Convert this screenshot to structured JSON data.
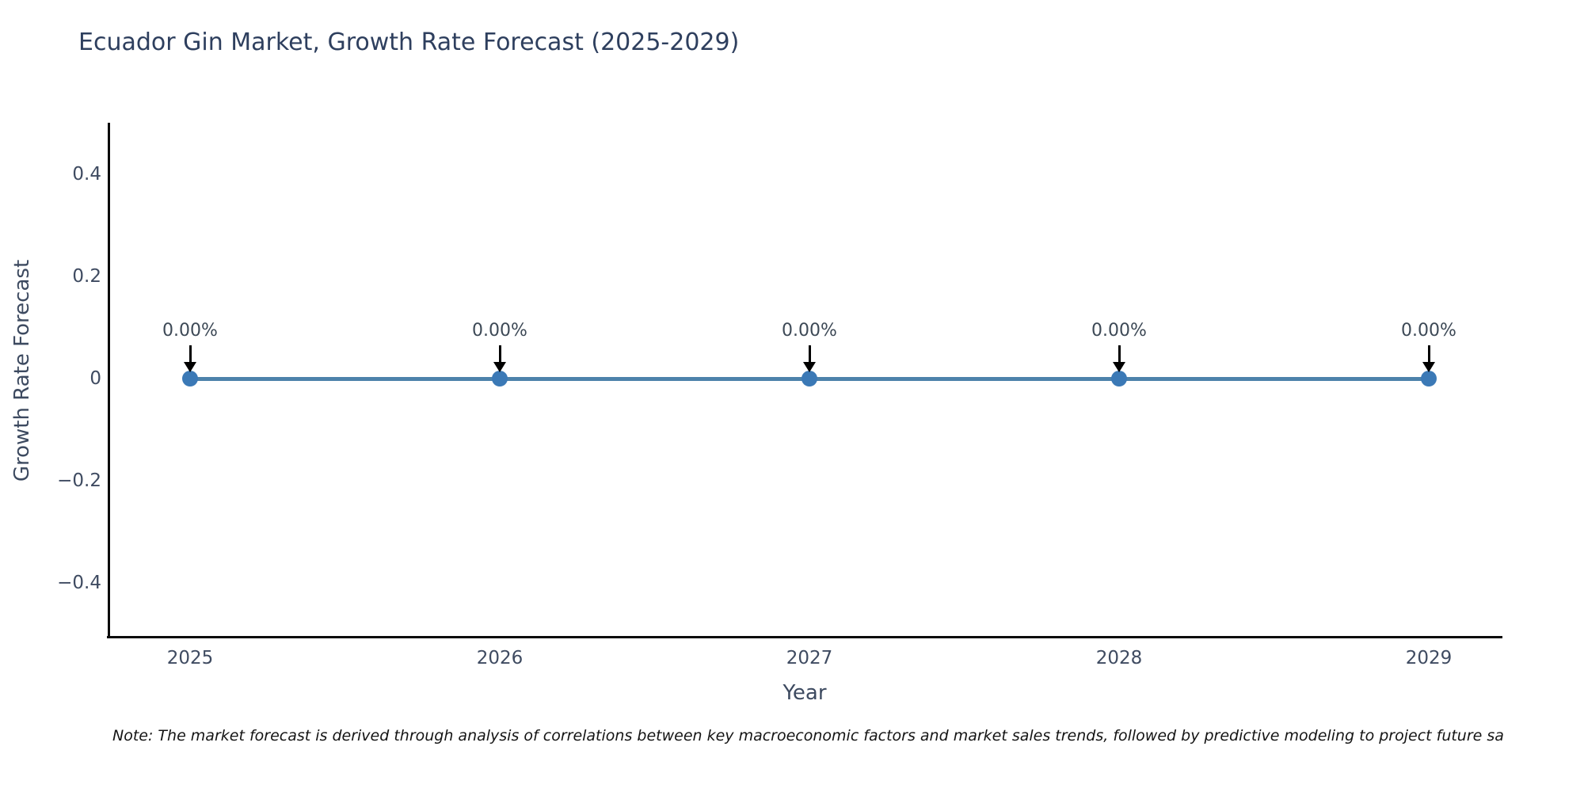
{
  "chart_data": {
    "type": "line",
    "title": "Ecuador Gin Market, Growth Rate Forecast (2025-2029)",
    "xlabel": "Year",
    "ylabel": "Growth Rate Forecast",
    "x": [
      2025,
      2026,
      2027,
      2028,
      2029
    ],
    "series": [
      {
        "name": "Growth Rate Forecast",
        "values": [
          0,
          0,
          0,
          0,
          0
        ]
      }
    ],
    "data_labels": [
      "0.00%",
      "0.00%",
      "0.00%",
      "0.00%",
      "0.00%"
    ],
    "xtick_labels": [
      "2025",
      "2026",
      "2027",
      "2028",
      "2029"
    ],
    "yticks": [
      0.4,
      0.2,
      0,
      -0.2,
      -0.4
    ],
    "ytick_labels": [
      "0.4",
      "0.2",
      "0",
      "−0.2",
      "−0.4"
    ],
    "ylim": [
      -0.5,
      0.5
    ],
    "grid": false,
    "legend": "none",
    "line_color": "#4d82ab",
    "marker_color": "#3b79b6",
    "arrow_color": "#000000",
    "text_color": "#3f4b61",
    "title_color": "#2e3f5e"
  },
  "note": {
    "text": "Note: The market forecast is derived through analysis of correlations between key macroeconomic factors and market sales trends, followed by predictive modeling to project future sa"
  }
}
